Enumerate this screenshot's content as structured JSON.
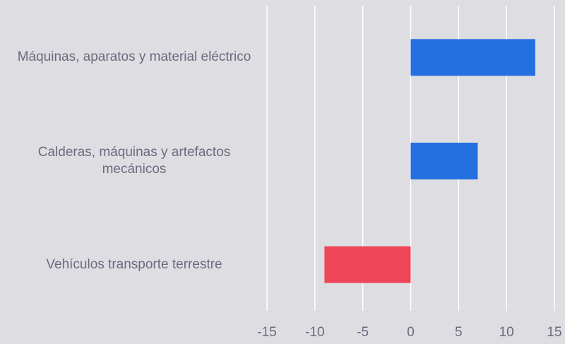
{
  "chart_data": {
    "type": "barh",
    "categories": [
      "Máquinas, aparatos y material eléctrico",
      "Calderas, máquinas y artefactos mecánicos",
      "Vehículos transporte terrestre"
    ],
    "values": [
      13,
      7,
      -9
    ],
    "colors": [
      "#2470e0",
      "#2470e0",
      "#ee4559"
    ],
    "xlim": [
      -15,
      15
    ],
    "xticks": [
      -15,
      -10,
      -5,
      0,
      5,
      10,
      15
    ],
    "grid": true
  }
}
